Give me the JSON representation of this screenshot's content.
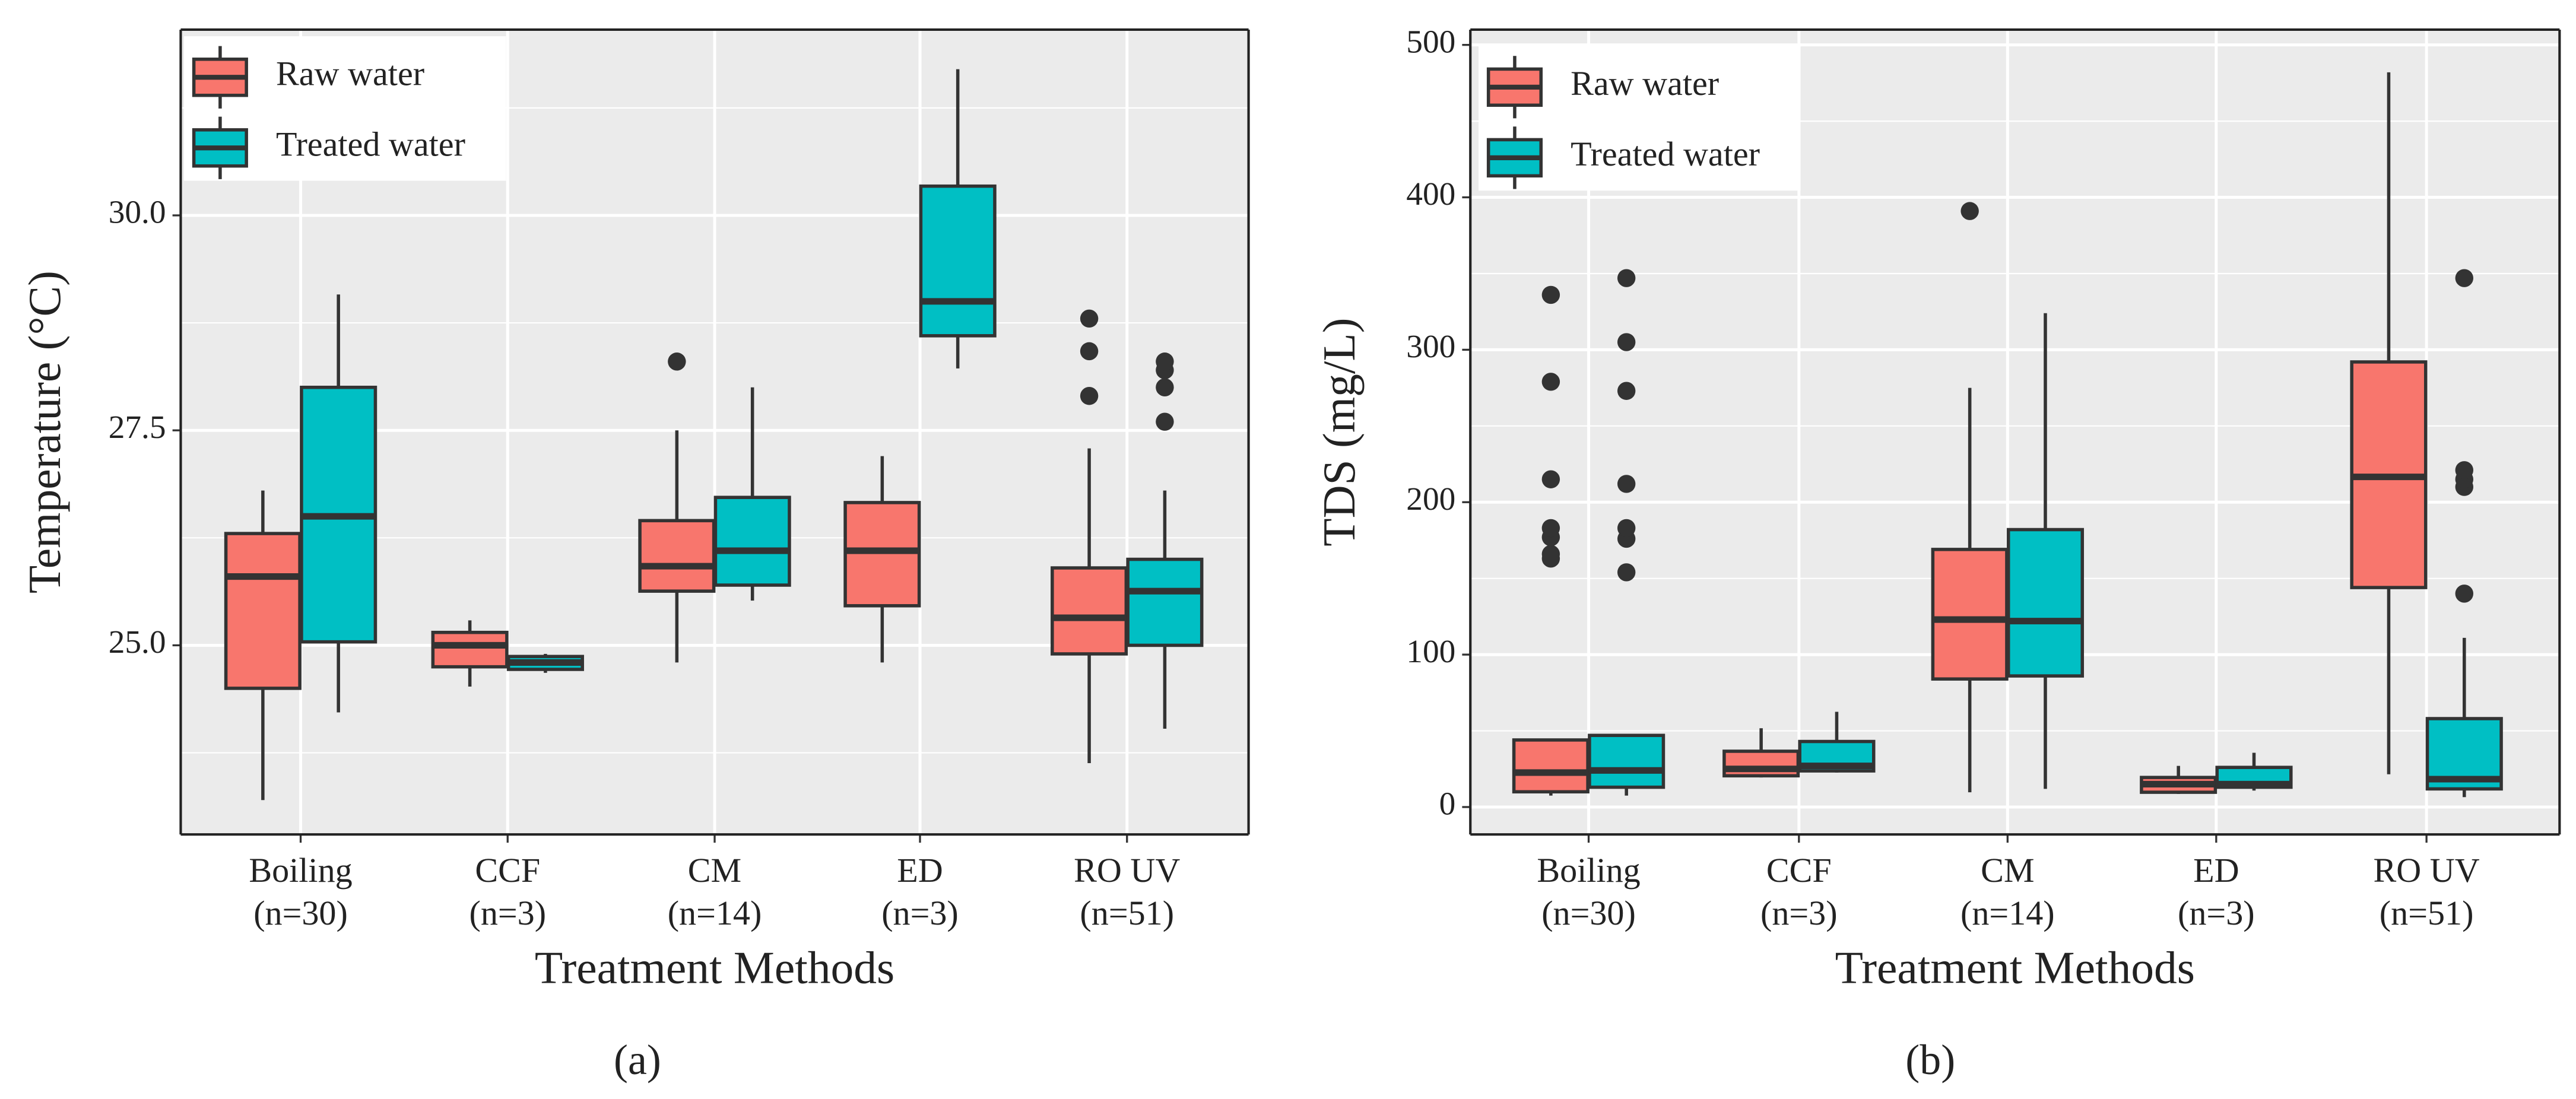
{
  "chart_data": [
    {
      "type": "boxplot",
      "panel_label": "(a)",
      "x_label": "Treatment Methods",
      "y_label": "Temperature (°C)",
      "categories": [
        "Boiling",
        "CCF",
        "CM",
        "ED",
        "RO UV"
      ],
      "category_counts": [
        "(n=30)",
        "(n=3)",
        "(n=14)",
        "(n=3)",
        "(n=51)"
      ],
      "ylim": [
        22.8,
        32.16
      ],
      "yticks": [
        {
          "value": 25,
          "label": "25.0"
        },
        27.5,
        {
          "value": 30,
          "label": "30.0"
        }
      ],
      "minor_yticks": [
        23.75,
        26.25,
        28.75,
        31.25
      ],
      "grid": true,
      "legend": "upper left",
      "series": [
        {
          "name": "Raw water",
          "color": "#f8766d",
          "boxes": [
            {
              "min": 23.2,
              "q1": 24.5,
              "median": 25.8,
              "q3": 26.3,
              "max": 26.8,
              "outliers": []
            },
            {
              "min": 24.52,
              "q1": 24.75,
              "median": 25.0,
              "q3": 25.15,
              "max": 25.29,
              "outliers": []
            },
            {
              "min": 24.8,
              "q1": 25.63,
              "median": 25.92,
              "q3": 26.45,
              "max": 27.5,
              "outliers": [
                28.3
              ]
            },
            {
              "min": 24.8,
              "q1": 25.46,
              "median": 26.1,
              "q3": 26.66,
              "max": 27.2,
              "outliers": []
            },
            {
              "min": 23.63,
              "q1": 24.9,
              "median": 25.32,
              "q3": 25.9,
              "max": 27.29,
              "outliers": [
                27.9,
                28.42,
                28.8
              ]
            }
          ]
        },
        {
          "name": "Treated water",
          "color": "#00bfc4",
          "boxes": [
            {
              "min": 24.22,
              "q1": 25.04,
              "median": 26.5,
              "q3": 28.0,
              "max": 29.08,
              "outliers": []
            },
            {
              "min": 24.68,
              "q1": 24.72,
              "median": 24.8,
              "q3": 24.87,
              "max": 24.9,
              "outliers": []
            },
            {
              "min": 25.52,
              "q1": 25.7,
              "median": 26.1,
              "q3": 26.72,
              "max": 28.0,
              "outliers": []
            },
            {
              "min": 28.22,
              "q1": 28.6,
              "median": 29.0,
              "q3": 30.34,
              "max": 31.7,
              "outliers": []
            },
            {
              "min": 24.03,
              "q1": 25.0,
              "median": 25.63,
              "q3": 26.0,
              "max": 26.8,
              "outliers": [
                27.6,
                28.0,
                28.2,
                28.3
              ]
            }
          ]
        }
      ]
    },
    {
      "type": "boxplot",
      "panel_label": "(b)",
      "x_label": "Treatment Methods",
      "y_label": "TDS (mg/L)",
      "categories": [
        "Boiling",
        "CCF",
        "CM",
        "ED",
        "RO UV"
      ],
      "category_counts": [
        "(n=30)",
        "(n=3)",
        "(n=14)",
        "(n=3)",
        "(n=51)"
      ],
      "ylim": [
        -18,
        510
      ],
      "yticks": [
        0,
        100,
        200,
        300,
        400,
        500
      ],
      "minor_yticks": [
        50,
        150,
        250,
        350,
        450
      ],
      "grid": true,
      "legend": "upper left",
      "series": [
        {
          "name": "Raw water",
          "color": "#f8766d",
          "boxes": [
            {
              "min": 7.5,
              "q1": 10,
              "median": 22.6,
              "q3": 44,
              "max": 44,
              "outliers": [
                163,
                166,
                177,
                183,
                215,
                279,
                336
              ]
            },
            {
              "min": 19.4,
              "q1": 20.5,
              "median": 25,
              "q3": 36.6,
              "max": 51.7,
              "outliers": []
            },
            {
              "min": 9.7,
              "q1": 84,
              "median": 123,
              "q3": 169,
              "max": 275,
              "outliers": [
                391
              ]
            },
            {
              "min": 8.6,
              "q1": 9.7,
              "median": 15,
              "q3": 19.4,
              "max": 27,
              "outliers": []
            },
            {
              "min": 21.5,
              "q1": 144,
              "median": 216.6,
              "q3": 292,
              "max": 482,
              "outliers": []
            }
          ]
        },
        {
          "name": "Treated water",
          "color": "#00bfc4",
          "boxes": [
            {
              "min": 7.5,
              "q1": 13,
              "median": 24,
              "q3": 47,
              "max": 47,
              "outliers": [
                154,
                176,
                183,
                212,
                273,
                305,
                347
              ]
            },
            {
              "min": 22.6,
              "q1": 23.7,
              "median": 27,
              "q3": 43,
              "max": 62.5,
              "outliers": []
            },
            {
              "min": 11.9,
              "q1": 86,
              "median": 122,
              "q3": 182,
              "max": 324,
              "outliers": []
            },
            {
              "min": 10.8,
              "q1": 13,
              "median": 15,
              "q3": 26,
              "max": 35.6,
              "outliers": []
            },
            {
              "min": 6.5,
              "q1": 11.9,
              "median": 18.3,
              "q3": 58,
              "max": 111,
              "outliers": [
                140,
                210,
                215,
                221,
                347
              ]
            }
          ]
        }
      ]
    }
  ]
}
